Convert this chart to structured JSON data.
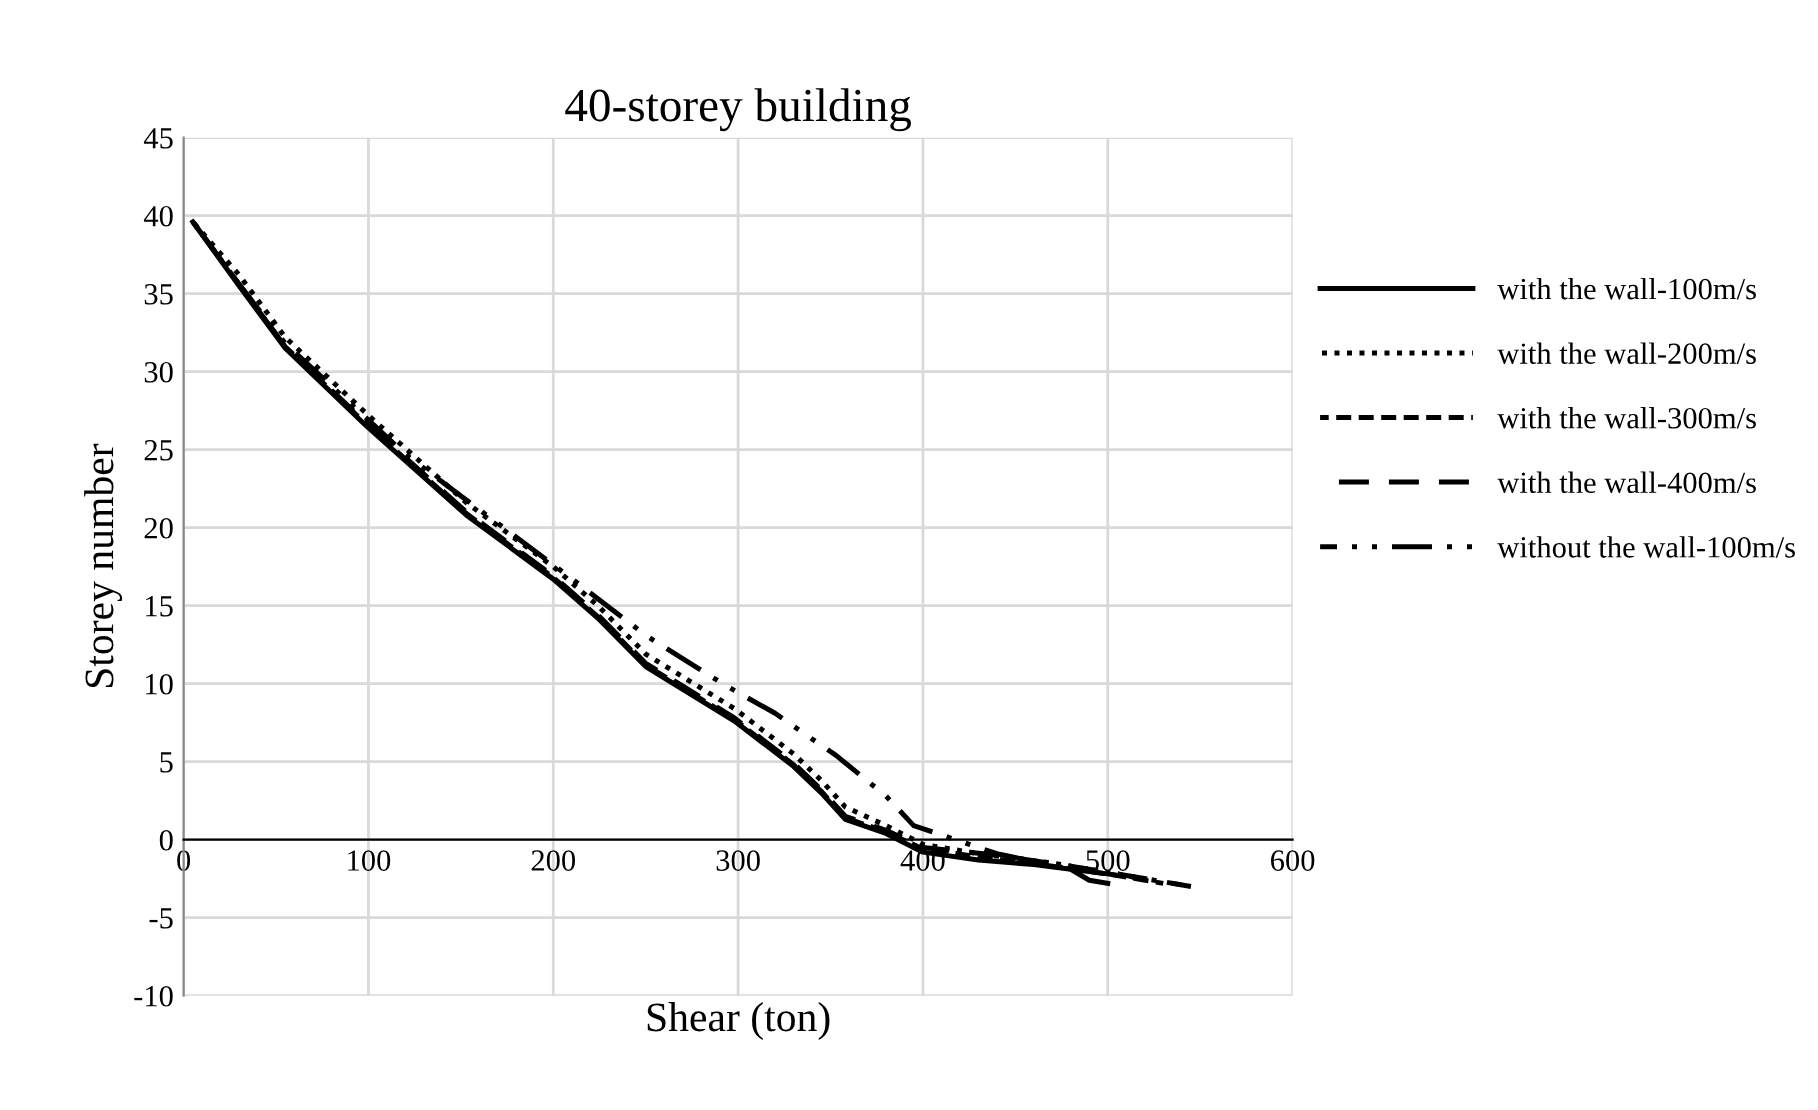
{
  "chart_data": {
    "type": "line",
    "title": "40-storey building",
    "xlabel": "Shear (ton)",
    "ylabel": "Storey number",
    "xlim": [
      0,
      600
    ],
    "xticks": [
      0,
      100,
      200,
      300,
      400,
      500,
      600
    ],
    "ylim": [
      -10,
      45
    ],
    "yticks": [
      -10,
      -5,
      0,
      5,
      10,
      15,
      20,
      25,
      30,
      35,
      40,
      45
    ],
    "grid": true,
    "legend": "right",
    "series": [
      {
        "name": "with the wall-100m/s",
        "color": "#000000",
        "line_style": "solid",
        "x": [
          5,
          30,
          55,
          99,
          153,
          200,
          225,
          250,
          298,
          330,
          345,
          358,
          380,
          400,
          430,
          460,
          480,
          490,
          500
        ],
        "values": [
          39.6,
          35.5,
          31.5,
          26.5,
          20.8,
          16.7,
          14.1,
          11.1,
          7.6,
          4.7,
          3,
          1.3,
          0.4,
          -0.8,
          -1.3,
          -1.6,
          -1.9,
          -2.6,
          -2.8
        ]
      },
      {
        "name": "with the wall-200m/s",
        "color": "#000000",
        "line_style": "dotted",
        "x": [
          5,
          30,
          55,
          99,
          153,
          200,
          225,
          250,
          298,
          330,
          345,
          358,
          380,
          400,
          430,
          470,
          500,
          520
        ],
        "values": [
          39.6,
          36.2,
          32.2,
          27.3,
          21.6,
          17.5,
          14.9,
          11.9,
          8.4,
          5.5,
          3.8,
          2.1,
          0.9,
          -0.3,
          -0.9,
          -1.5,
          -2.1,
          -2.5
        ]
      },
      {
        "name": "with the wall-300m/s",
        "color": "#000000",
        "line_style": "dashed",
        "x": [
          5,
          30,
          55,
          99,
          153,
          200,
          225,
          250,
          298,
          330,
          345,
          358,
          380,
          400,
          430,
          470,
          500,
          530
        ],
        "values": [
          39.6,
          35.6,
          31.6,
          26.6,
          20.9,
          16.8,
          14.2,
          11.2,
          7.7,
          4.8,
          3.1,
          1.4,
          0.5,
          -0.6,
          -1.1,
          -1.7,
          -2.2,
          -2.8
        ]
      },
      {
        "name": "with the wall-400m/s",
        "color": "#000000",
        "line_style": "longdash",
        "x": [
          5,
          30,
          55,
          99,
          153,
          200,
          225,
          250,
          298,
          330,
          345,
          358,
          380,
          400,
          440,
          480,
          510,
          540
        ],
        "values": [
          39.6,
          35.6,
          31.6,
          26.7,
          21.0,
          16.9,
          14.3,
          11.3,
          7.8,
          4.9,
          3.2,
          1.5,
          0.6,
          -0.5,
          -1.0,
          -1.7,
          -2.3,
          -2.9
        ]
      },
      {
        "name": "without the wall-100m/s",
        "color": "#000000",
        "line_style": "dashdot",
        "x": [
          5,
          30,
          55,
          99,
          120,
          164,
          207,
          250,
          293,
          320,
          337,
          353,
          380,
          395,
          415,
          440,
          480,
          520,
          545
        ],
        "values": [
          39.6,
          35.6,
          31.8,
          27.0,
          24.7,
          20.8,
          17.0,
          13.1,
          9.9,
          8.1,
          6.7,
          5.4,
          2.8,
          0.9,
          0.1,
          -0.9,
          -1.9,
          -2.5,
          -3.0
        ]
      }
    ]
  }
}
